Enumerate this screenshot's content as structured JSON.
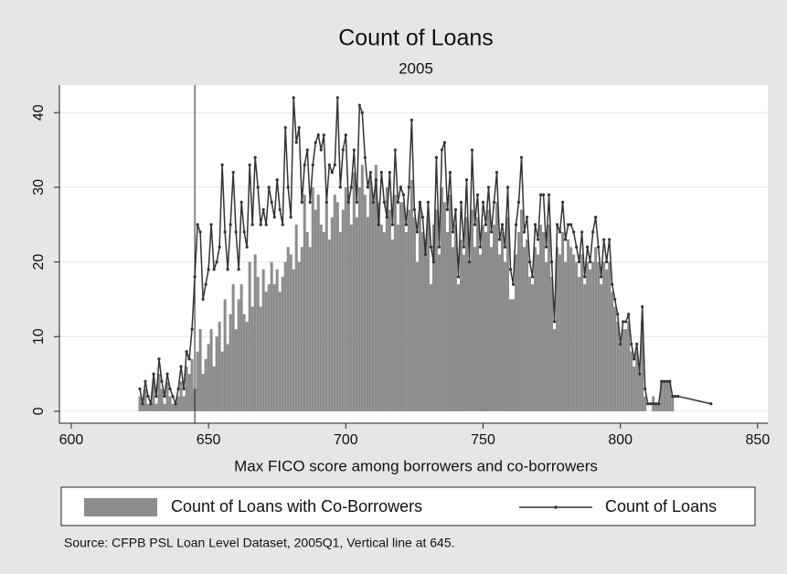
{
  "chart_data": {
    "type": "combo",
    "title": "Count of Loans",
    "subtitle": "2005",
    "x_label": "Max FICO score among borrowers and co-borrowers",
    "note": "Source: CFPB PSL Loan Level Dataset, 2005Q1, Vertical line at 645.",
    "xline": 645,
    "xlim": [
      595.7,
      853.7
    ],
    "ylim": [
      -1.6,
      43.7
    ],
    "xticks": [
      600,
      650,
      700,
      750,
      800,
      850
    ],
    "yticks": [
      0,
      10,
      20,
      30,
      40
    ],
    "grid": true,
    "x": [
      625,
      626,
      627,
      628,
      629,
      630,
      631,
      632,
      633,
      634,
      635,
      636,
      637,
      638,
      639,
      640,
      641,
      642,
      643,
      644,
      645,
      646,
      647,
      648,
      649,
      650,
      651,
      652,
      653,
      654,
      655,
      656,
      657,
      658,
      659,
      660,
      661,
      662,
      663,
      664,
      665,
      666,
      667,
      668,
      669,
      670,
      671,
      672,
      673,
      674,
      675,
      676,
      677,
      678,
      679,
      680,
      681,
      682,
      683,
      684,
      685,
      686,
      687,
      688,
      689,
      690,
      691,
      692,
      693,
      694,
      695,
      696,
      697,
      698,
      699,
      700,
      701,
      702,
      703,
      704,
      705,
      706,
      707,
      708,
      709,
      710,
      711,
      712,
      713,
      714,
      715,
      716,
      717,
      718,
      719,
      720,
      721,
      722,
      723,
      724,
      725,
      726,
      727,
      728,
      729,
      730,
      731,
      732,
      733,
      734,
      735,
      736,
      737,
      738,
      739,
      740,
      741,
      742,
      743,
      744,
      745,
      746,
      747,
      748,
      749,
      750,
      751,
      752,
      753,
      754,
      755,
      756,
      757,
      758,
      759,
      760,
      761,
      762,
      763,
      764,
      765,
      766,
      767,
      768,
      769,
      770,
      771,
      772,
      773,
      774,
      775,
      776,
      777,
      778,
      779,
      780,
      781,
      782,
      783,
      784,
      785,
      786,
      787,
      788,
      789,
      790,
      791,
      792,
      793,
      794,
      795,
      796,
      797,
      798,
      799,
      800,
      801,
      802,
      803,
      804,
      805,
      806,
      807,
      808,
      809,
      810,
      811,
      812,
      813,
      814,
      815,
      816,
      817,
      818,
      819,
      820,
      821,
      833
    ],
    "series": [
      {
        "name": "Count of Loans with Co-Borrowers",
        "type": "bar",
        "color": "#8c8c8c",
        "values": [
          2,
          1,
          3,
          1,
          1,
          4,
          1,
          5,
          3,
          1,
          4,
          2,
          1,
          1,
          2,
          4,
          2,
          6,
          5,
          7,
          3,
          8,
          11,
          5,
          7,
          9,
          11,
          6,
          10,
          12,
          8,
          15,
          9,
          13,
          17,
          11,
          15,
          17,
          13,
          12,
          20,
          14,
          21,
          18,
          14,
          19,
          16,
          17,
          20,
          17,
          19,
          16,
          18,
          20,
          22,
          21,
          19,
          25,
          20,
          22,
          29,
          24,
          22,
          30,
          27,
          29,
          25,
          24,
          28,
          23,
          26,
          29,
          28,
          24,
          27,
          30,
          29,
          25,
          32,
          26,
          30,
          33,
          29,
          26,
          31,
          28,
          33,
          28,
          25,
          24,
          30,
          27,
          23,
          29,
          25,
          28,
          28,
          24,
          27,
          31,
          26,
          20,
          28,
          24,
          23,
          26,
          17,
          25,
          27,
          21,
          30,
          28,
          24,
          29,
          22,
          25,
          17,
          23,
          21,
          26,
          20,
          27,
          22,
          26,
          21,
          25,
          24,
          27,
          22,
          25,
          28,
          21,
          24,
          20,
          26,
          15,
          15,
          21,
          24,
          27,
          22,
          23,
          18,
          17,
          22,
          21,
          25,
          24,
          20,
          25,
          18,
          11,
          22,
          21,
          24,
          20,
          23,
          22,
          21,
          20,
          18,
          21,
          17,
          20,
          19,
          20,
          22,
          20,
          17,
          20,
          19,
          20,
          16,
          14,
          12,
          9,
          11,
          11,
          12,
          8,
          6,
          8,
          5,
          12,
          2,
          0,
          0,
          2,
          1,
          1,
          4,
          4,
          4,
          4,
          2,
          0,
          0,
          null
        ]
      },
      {
        "name": "Count of Loans",
        "type": "line",
        "color": "#333333",
        "values": [
          3,
          1,
          4,
          2,
          1,
          5,
          2,
          7,
          4,
          2,
          5,
          3,
          2,
          1,
          3,
          6,
          3,
          8,
          7,
          11,
          18,
          25,
          24,
          15,
          17,
          19,
          25,
          19,
          20,
          22,
          33,
          24,
          19,
          25,
          32,
          24,
          19,
          28,
          24,
          22,
          33,
          25,
          34,
          30,
          25,
          27,
          25,
          30,
          28,
          26,
          31,
          27,
          25,
          38,
          30,
          26,
          42,
          36,
          38,
          28,
          33,
          35,
          28,
          33,
          36,
          37,
          35,
          37,
          28,
          33,
          32,
          33,
          42,
          30,
          35,
          37,
          28,
          30,
          35,
          28,
          41,
          40,
          34,
          30,
          32,
          28,
          31,
          25,
          32,
          28,
          26,
          32,
          25,
          35,
          28,
          30,
          29,
          25,
          30,
          39,
          27,
          24,
          28,
          26,
          21,
          28,
          22,
          20,
          34,
          22,
          35,
          36,
          27,
          32,
          24,
          27,
          18,
          28,
          22,
          31,
          20,
          35,
          25,
          29,
          22,
          28,
          25,
          30,
          24,
          28,
          32,
          23,
          25,
          22,
          30,
          19,
          17,
          25,
          28,
          34,
          24,
          26,
          20,
          18,
          25,
          23,
          29,
          29,
          22,
          29,
          20,
          12,
          25,
          24,
          28,
          23,
          25,
          25,
          24,
          22,
          20,
          24,
          18,
          22,
          20,
          24,
          26,
          22,
          18,
          23,
          20,
          23,
          17,
          15,
          13,
          9,
          12,
          12,
          13,
          9,
          7,
          9,
          5,
          14,
          3,
          1,
          1,
          1,
          1,
          1,
          4,
          4,
          4,
          4,
          2,
          2,
          2,
          1
        ]
      }
    ]
  }
}
